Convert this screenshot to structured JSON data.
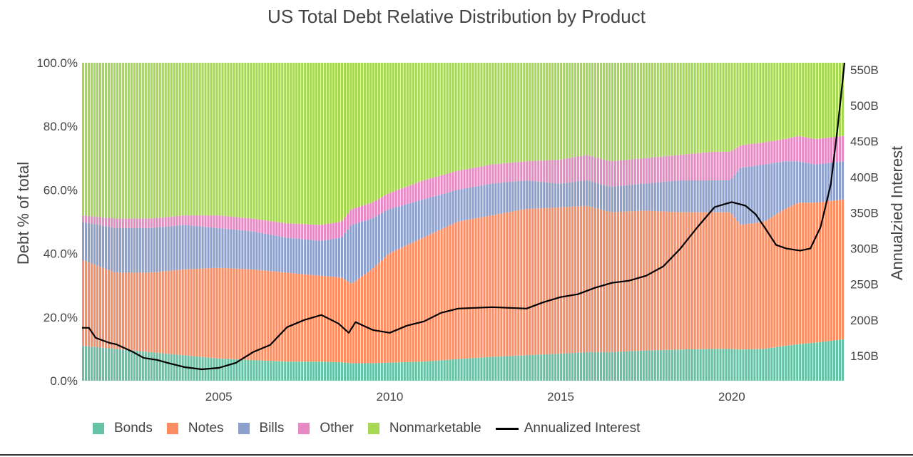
{
  "chart_data": {
    "type": "bar",
    "stacked": true,
    "normalized": true,
    "title": "US Total Debt Relative Distribution by Product",
    "ylabel": "Debt % of total",
    "y2label": "Annualzied Interest",
    "xlim": [
      2001.0,
      2023.3
    ],
    "ylim": [
      0,
      100
    ],
    "y2lim": [
      115,
      560
    ],
    "x_ticks": [
      "2005",
      "2010",
      "2015",
      "2020"
    ],
    "x_tick_values": [
      2005,
      2010,
      2015,
      2020
    ],
    "y_ticks": [
      "0.0%",
      "20.0%",
      "40.0%",
      "60.0%",
      "80.0%",
      "100.0%"
    ],
    "y_tick_values": [
      0,
      20,
      40,
      60,
      80,
      100
    ],
    "y2_ticks": [
      "150B",
      "200B",
      "250B",
      "300B",
      "350B",
      "400B",
      "450B",
      "500B",
      "550B"
    ],
    "y2_tick_values": [
      150,
      200,
      250,
      300,
      350,
      400,
      450,
      500,
      550
    ],
    "grid": false,
    "legend_position": "bottom",
    "share_keypoints": [
      {
        "t": 2001.0,
        "bonds": 11.0,
        "notes": 38.0,
        "bills": 50.0,
        "other": 52.0
      },
      {
        "t": 2002.0,
        "bonds": 10.0,
        "notes": 34.0,
        "bills": 48.0,
        "other": 51.0
      },
      {
        "t": 2003.0,
        "bonds": 9.0,
        "notes": 34.0,
        "bills": 48.0,
        "other": 51.0
      },
      {
        "t": 2004.0,
        "bonds": 8.0,
        "notes": 35.0,
        "bills": 49.0,
        "other": 52.0
      },
      {
        "t": 2005.0,
        "bonds": 7.0,
        "notes": 35.5,
        "bills": 48.0,
        "other": 52.0
      },
      {
        "t": 2006.0,
        "bonds": 6.5,
        "notes": 35.0,
        "bills": 47.0,
        "other": 51.0
      },
      {
        "t": 2007.0,
        "bonds": 6.0,
        "notes": 34.0,
        "bills": 45.0,
        "other": 49.5
      },
      {
        "t": 2008.0,
        "bonds": 6.0,
        "notes": 33.0,
        "bills": 44.0,
        "other": 49.0
      },
      {
        "t": 2008.6,
        "bonds": 5.8,
        "notes": 32.5,
        "bills": 45.0,
        "other": 50.0
      },
      {
        "t": 2008.9,
        "bonds": 5.5,
        "notes": 30.5,
        "bills": 49.0,
        "other": 54.0
      },
      {
        "t": 2009.5,
        "bonds": 5.5,
        "notes": 35.0,
        "bills": 51.0,
        "other": 56.0
      },
      {
        "t": 2010.0,
        "bonds": 5.7,
        "notes": 40.0,
        "bills": 54.0,
        "other": 59.0
      },
      {
        "t": 2011.0,
        "bonds": 6.0,
        "notes": 45.0,
        "bills": 57.0,
        "other": 63.0
      },
      {
        "t": 2012.0,
        "bonds": 6.8,
        "notes": 50.0,
        "bills": 60.0,
        "other": 66.0
      },
      {
        "t": 2013.0,
        "bonds": 7.5,
        "notes": 52.0,
        "bills": 62.0,
        "other": 68.0
      },
      {
        "t": 2014.0,
        "bonds": 8.0,
        "notes": 54.0,
        "bills": 63.0,
        "other": 69.0
      },
      {
        "t": 2015.0,
        "bonds": 8.5,
        "notes": 54.5,
        "bills": 62.0,
        "other": 69.5
      },
      {
        "t": 2015.8,
        "bonds": 9.0,
        "notes": 55.0,
        "bills": 63.0,
        "other": 71.0
      },
      {
        "t": 2016.5,
        "bonds": 9.0,
        "notes": 53.0,
        "bills": 61.0,
        "other": 69.0
      },
      {
        "t": 2017.5,
        "bonds": 9.5,
        "notes": 53.5,
        "bills": 62.0,
        "other": 70.0
      },
      {
        "t": 2018.5,
        "bonds": 9.8,
        "notes": 53.0,
        "bills": 63.0,
        "other": 71.0
      },
      {
        "t": 2019.5,
        "bonds": 10.0,
        "notes": 53.0,
        "bills": 63.0,
        "other": 72.0
      },
      {
        "t": 2020.0,
        "bonds": 10.0,
        "notes": 53.0,
        "bills": 63.0,
        "other": 72.0
      },
      {
        "t": 2020.3,
        "bonds": 9.8,
        "notes": 49.0,
        "bills": 67.0,
        "other": 74.0
      },
      {
        "t": 2021.0,
        "bonds": 10.0,
        "notes": 50.0,
        "bills": 68.0,
        "other": 75.0
      },
      {
        "t": 2021.6,
        "bonds": 11.0,
        "notes": 54.0,
        "bills": 69.0,
        "other": 76.0
      },
      {
        "t": 2022.0,
        "bonds": 11.5,
        "notes": 56.0,
        "bills": 69.0,
        "other": 77.0
      },
      {
        "t": 2022.5,
        "bonds": 12.0,
        "notes": 56.0,
        "bills": 68.0,
        "other": 76.0
      },
      {
        "t": 2023.3,
        "bonds": 13.0,
        "notes": 57.0,
        "bills": 69.0,
        "other": 77.0
      }
    ],
    "interest_keypoints": [
      [
        2001.0,
        189
      ],
      [
        2001.2,
        189
      ],
      [
        2001.4,
        175
      ],
      [
        2001.8,
        168
      ],
      [
        2002.0,
        166
      ],
      [
        2002.5,
        155
      ],
      [
        2002.8,
        147
      ],
      [
        2003.2,
        144
      ],
      [
        2003.5,
        140
      ],
      [
        2004.0,
        134
      ],
      [
        2004.5,
        131
      ],
      [
        2005.0,
        133
      ],
      [
        2005.5,
        140
      ],
      [
        2006.0,
        155
      ],
      [
        2006.5,
        165
      ],
      [
        2007.0,
        190
      ],
      [
        2007.5,
        200
      ],
      [
        2008.0,
        207
      ],
      [
        2008.5,
        195
      ],
      [
        2008.8,
        182
      ],
      [
        2009.0,
        197
      ],
      [
        2009.5,
        186
      ],
      [
        2010.0,
        182
      ],
      [
        2010.5,
        192
      ],
      [
        2011.0,
        198
      ],
      [
        2011.5,
        210
      ],
      [
        2012.0,
        216
      ],
      [
        2013.0,
        218
      ],
      [
        2014.0,
        216
      ],
      [
        2014.5,
        225
      ],
      [
        2015.0,
        232
      ],
      [
        2015.5,
        236
      ],
      [
        2016.0,
        245
      ],
      [
        2016.5,
        252
      ],
      [
        2017.0,
        255
      ],
      [
        2017.5,
        262
      ],
      [
        2018.0,
        275
      ],
      [
        2018.5,
        300
      ],
      [
        2019.0,
        330
      ],
      [
        2019.5,
        358
      ],
      [
        2020.0,
        365
      ],
      [
        2020.4,
        360
      ],
      [
        2020.7,
        348
      ],
      [
        2021.0,
        327
      ],
      [
        2021.3,
        305
      ],
      [
        2021.6,
        300
      ],
      [
        2022.0,
        297
      ],
      [
        2022.3,
        300
      ],
      [
        2022.6,
        330
      ],
      [
        2022.9,
        390
      ],
      [
        2023.1,
        470
      ],
      [
        2023.3,
        560
      ]
    ],
    "series": [
      {
        "name": "Bonds",
        "color": "#66c2a5"
      },
      {
        "name": "Notes",
        "color": "#fc8d62"
      },
      {
        "name": "Bills",
        "color": "#8da0cb"
      },
      {
        "name": "Other",
        "color": "#e78ac3"
      },
      {
        "name": "Nonmarketable",
        "color": "#a6d854"
      },
      {
        "name": "Annualized Interest",
        "color": "#000000",
        "type": "line",
        "axis": "y2"
      }
    ]
  }
}
